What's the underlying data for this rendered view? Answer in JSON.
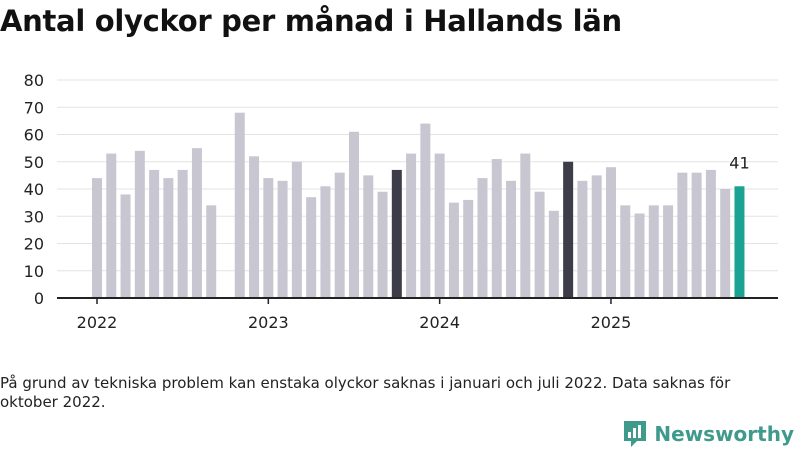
{
  "title": "Antal olyckor per månad i Hallands län",
  "footnote": "På grund av tekniska problem kan enstaka olyckor saknas i januari och juli 2022. Data saknas för oktober 2022.",
  "brand": {
    "name": "Newsworthy"
  },
  "colors": {
    "bar": "#c8c7d1",
    "highlight": "#3d3d4a",
    "latest": "#1aa393",
    "grid": "#e3e3e3",
    "axis": "#222222",
    "text": "#222222",
    "brand": "#3f9a8c"
  },
  "chart_data": {
    "type": "bar",
    "title": "Antal olyckor per månad i Hallands län",
    "xlabel": "",
    "ylabel": "",
    "ylim": [
      0,
      80
    ],
    "yticks": [
      0,
      10,
      20,
      30,
      40,
      50,
      60,
      70,
      80
    ],
    "grid": true,
    "start_month": "2022-01",
    "year_labels": [
      "2022",
      "2023",
      "2024",
      "2025"
    ],
    "values": [
      44,
      53,
      38,
      54,
      47,
      44,
      47,
      55,
      34,
      null,
      68,
      52,
      44,
      43,
      50,
      37,
      41,
      46,
      61,
      45,
      39,
      47,
      53,
      64,
      53,
      35,
      36,
      44,
      51,
      43,
      53,
      39,
      32,
      50,
      43,
      45,
      48,
      34,
      31,
      34,
      34,
      46,
      46,
      47,
      40,
      41
    ],
    "highlighted_indices": [
      21,
      33
    ],
    "latest_label": "41"
  }
}
